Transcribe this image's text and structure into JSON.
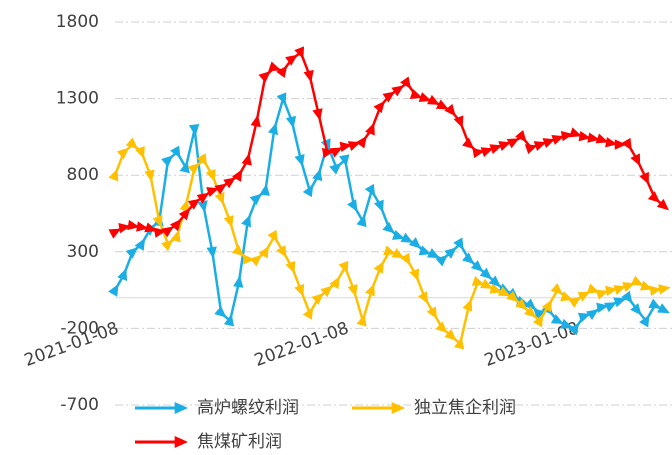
{
  "chart_data": {
    "type": "line",
    "categories": [
      "2021-01-08",
      null,
      null,
      null,
      null,
      null,
      null,
      null,
      null,
      null,
      null,
      null,
      null,
      null,
      null,
      null,
      null,
      null,
      null,
      null,
      null,
      null,
      null,
      null,
      null,
      null,
      "2022-01-08",
      null,
      null,
      null,
      null,
      null,
      null,
      null,
      null,
      null,
      null,
      null,
      null,
      null,
      null,
      null,
      null,
      null,
      null,
      null,
      null,
      null,
      null,
      null,
      null,
      null,
      "2023-01-08",
      null,
      null,
      null,
      null,
      null,
      null,
      null,
      null,
      null,
      null
    ],
    "series": [
      {
        "name": "高炉螺纹利润",
        "color": "#1aaee5",
        "values": [
          50,
          150,
          300,
          350,
          450,
          500,
          900,
          950,
          850,
          1100,
          600,
          300,
          -100,
          -150,
          100,
          500,
          650,
          700,
          1100,
          1300,
          1150,
          900,
          700,
          800,
          1000,
          850,
          900,
          600,
          500,
          700,
          600,
          450,
          400,
          380,
          350,
          300,
          280,
          250,
          300,
          350,
          250,
          200,
          150,
          100,
          50,
          20,
          -30,
          -50,
          -100,
          -80,
          -150,
          -180,
          -200,
          -120,
          -100,
          -60,
          -50,
          -20,
          0,
          -80,
          -150,
          -50,
          -80
        ]
      },
      {
        "name": "独立焦企利润",
        "color": "#ffc000",
        "values": [
          800,
          950,
          1000,
          950,
          800,
          500,
          350,
          400,
          600,
          850,
          900,
          800,
          650,
          500,
          300,
          250,
          250,
          300,
          400,
          300,
          200,
          50,
          -100,
          0,
          50,
          100,
          200,
          50,
          -150,
          50,
          200,
          300,
          280,
          250,
          150,
          0,
          -100,
          -200,
          -250,
          -300,
          -50,
          100,
          80,
          50,
          30,
          0,
          -50,
          -100,
          -150,
          -50,
          50,
          0,
          -20,
          20,
          50,
          30,
          50,
          60,
          80,
          100,
          70,
          50,
          60
        ]
      },
      {
        "name": "焦煤矿利润",
        "color": "#ff0000",
        "values": [
          430,
          460,
          470,
          460,
          450,
          430,
          440,
          480,
          550,
          620,
          660,
          700,
          720,
          760,
          800,
          900,
          1150,
          1450,
          1500,
          1480,
          1560,
          1600,
          1450,
          1200,
          950,
          960,
          990,
          1000,
          1020,
          1100,
          1250,
          1320,
          1360,
          1400,
          1320,
          1300,
          1280,
          1250,
          1220,
          1150,
          1000,
          950,
          960,
          980,
          1000,
          1020,
          1050,
          980,
          1000,
          1020,
          1040,
          1060,
          1070,
          1050,
          1040,
          1030,
          1010,
          1000,
          1000,
          900,
          780,
          650,
          600
        ]
      }
    ],
    "ylim": [
      -700,
      1800
    ],
    "yticks": [
      -700,
      -200,
      300,
      800,
      1300,
      1800
    ],
    "grid": true,
    "legend": "bottom"
  }
}
